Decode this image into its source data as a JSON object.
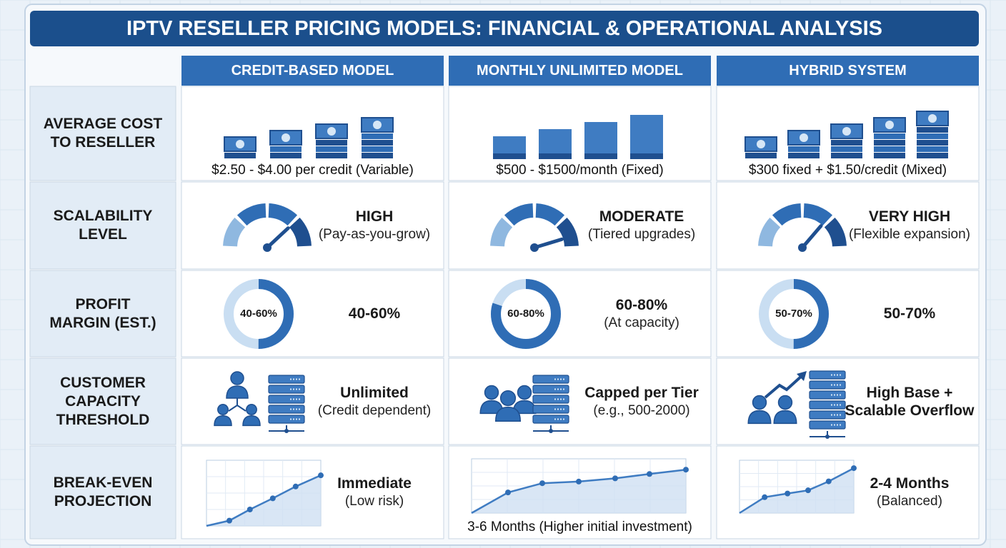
{
  "title": "IPTV RESELLER PRICING MODELS: FINANCIAL & OPERATIONAL ANALYSIS",
  "columns": [
    "CREDIT-BASED MODEL",
    "MONTHLY UNLIMITED MODEL",
    "HYBRID SYSTEM"
  ],
  "rows": [
    {
      "label": [
        "AVERAGE COST",
        "TO RESELLER"
      ],
      "cells": [
        {
          "caption": "$2.50 - $4.00 per credit (Variable)"
        },
        {
          "caption": "$500 - $1500/month (Fixed)"
        },
        {
          "caption": "$300 fixed + $1.50/credit (Mixed)"
        }
      ]
    },
    {
      "label": [
        "SCALABILITY",
        "LEVEL"
      ],
      "cells": [
        {
          "value": [
            "HIGH"
          ],
          "note": "(Pay-as-you-grow)"
        },
        {
          "value": [
            "MODERATE"
          ],
          "note": "(Tiered upgrades)"
        },
        {
          "value": [
            "VERY HIGH"
          ],
          "note": "(Flexible expansion)"
        }
      ]
    },
    {
      "label": [
        "PROFIT",
        "MARGIN (EST.)"
      ],
      "cells": [
        {
          "badge": "40-60%",
          "value": [
            "40-60%"
          ]
        },
        {
          "badge": "60-80%",
          "value": [
            "60-80%"
          ],
          "note": "(At capacity)"
        },
        {
          "badge": "50-70%",
          "value": [
            "50-70%"
          ]
        }
      ]
    },
    {
      "label": [
        "CUSTOMER",
        "CAPACITY",
        "THRESHOLD"
      ],
      "cells": [
        {
          "value": [
            "Unlimited"
          ],
          "note": "(Credit dependent)"
        },
        {
          "value": [
            "Capped per Tier"
          ],
          "note": "(e.g., 500-2000)"
        },
        {
          "value": [
            "High Base +",
            "Scalable Overflow"
          ]
        }
      ]
    },
    {
      "label": [
        "BREAK-EVEN",
        "PROJECTION"
      ],
      "cells": [
        {
          "value": [
            "Immediate"
          ],
          "note": "(Low risk)"
        },
        {
          "caption": "3-6 Months (Higher initial investment)"
        },
        {
          "value": [
            "2-4 Months"
          ],
          "note": "(Balanced)"
        }
      ]
    }
  ]
}
